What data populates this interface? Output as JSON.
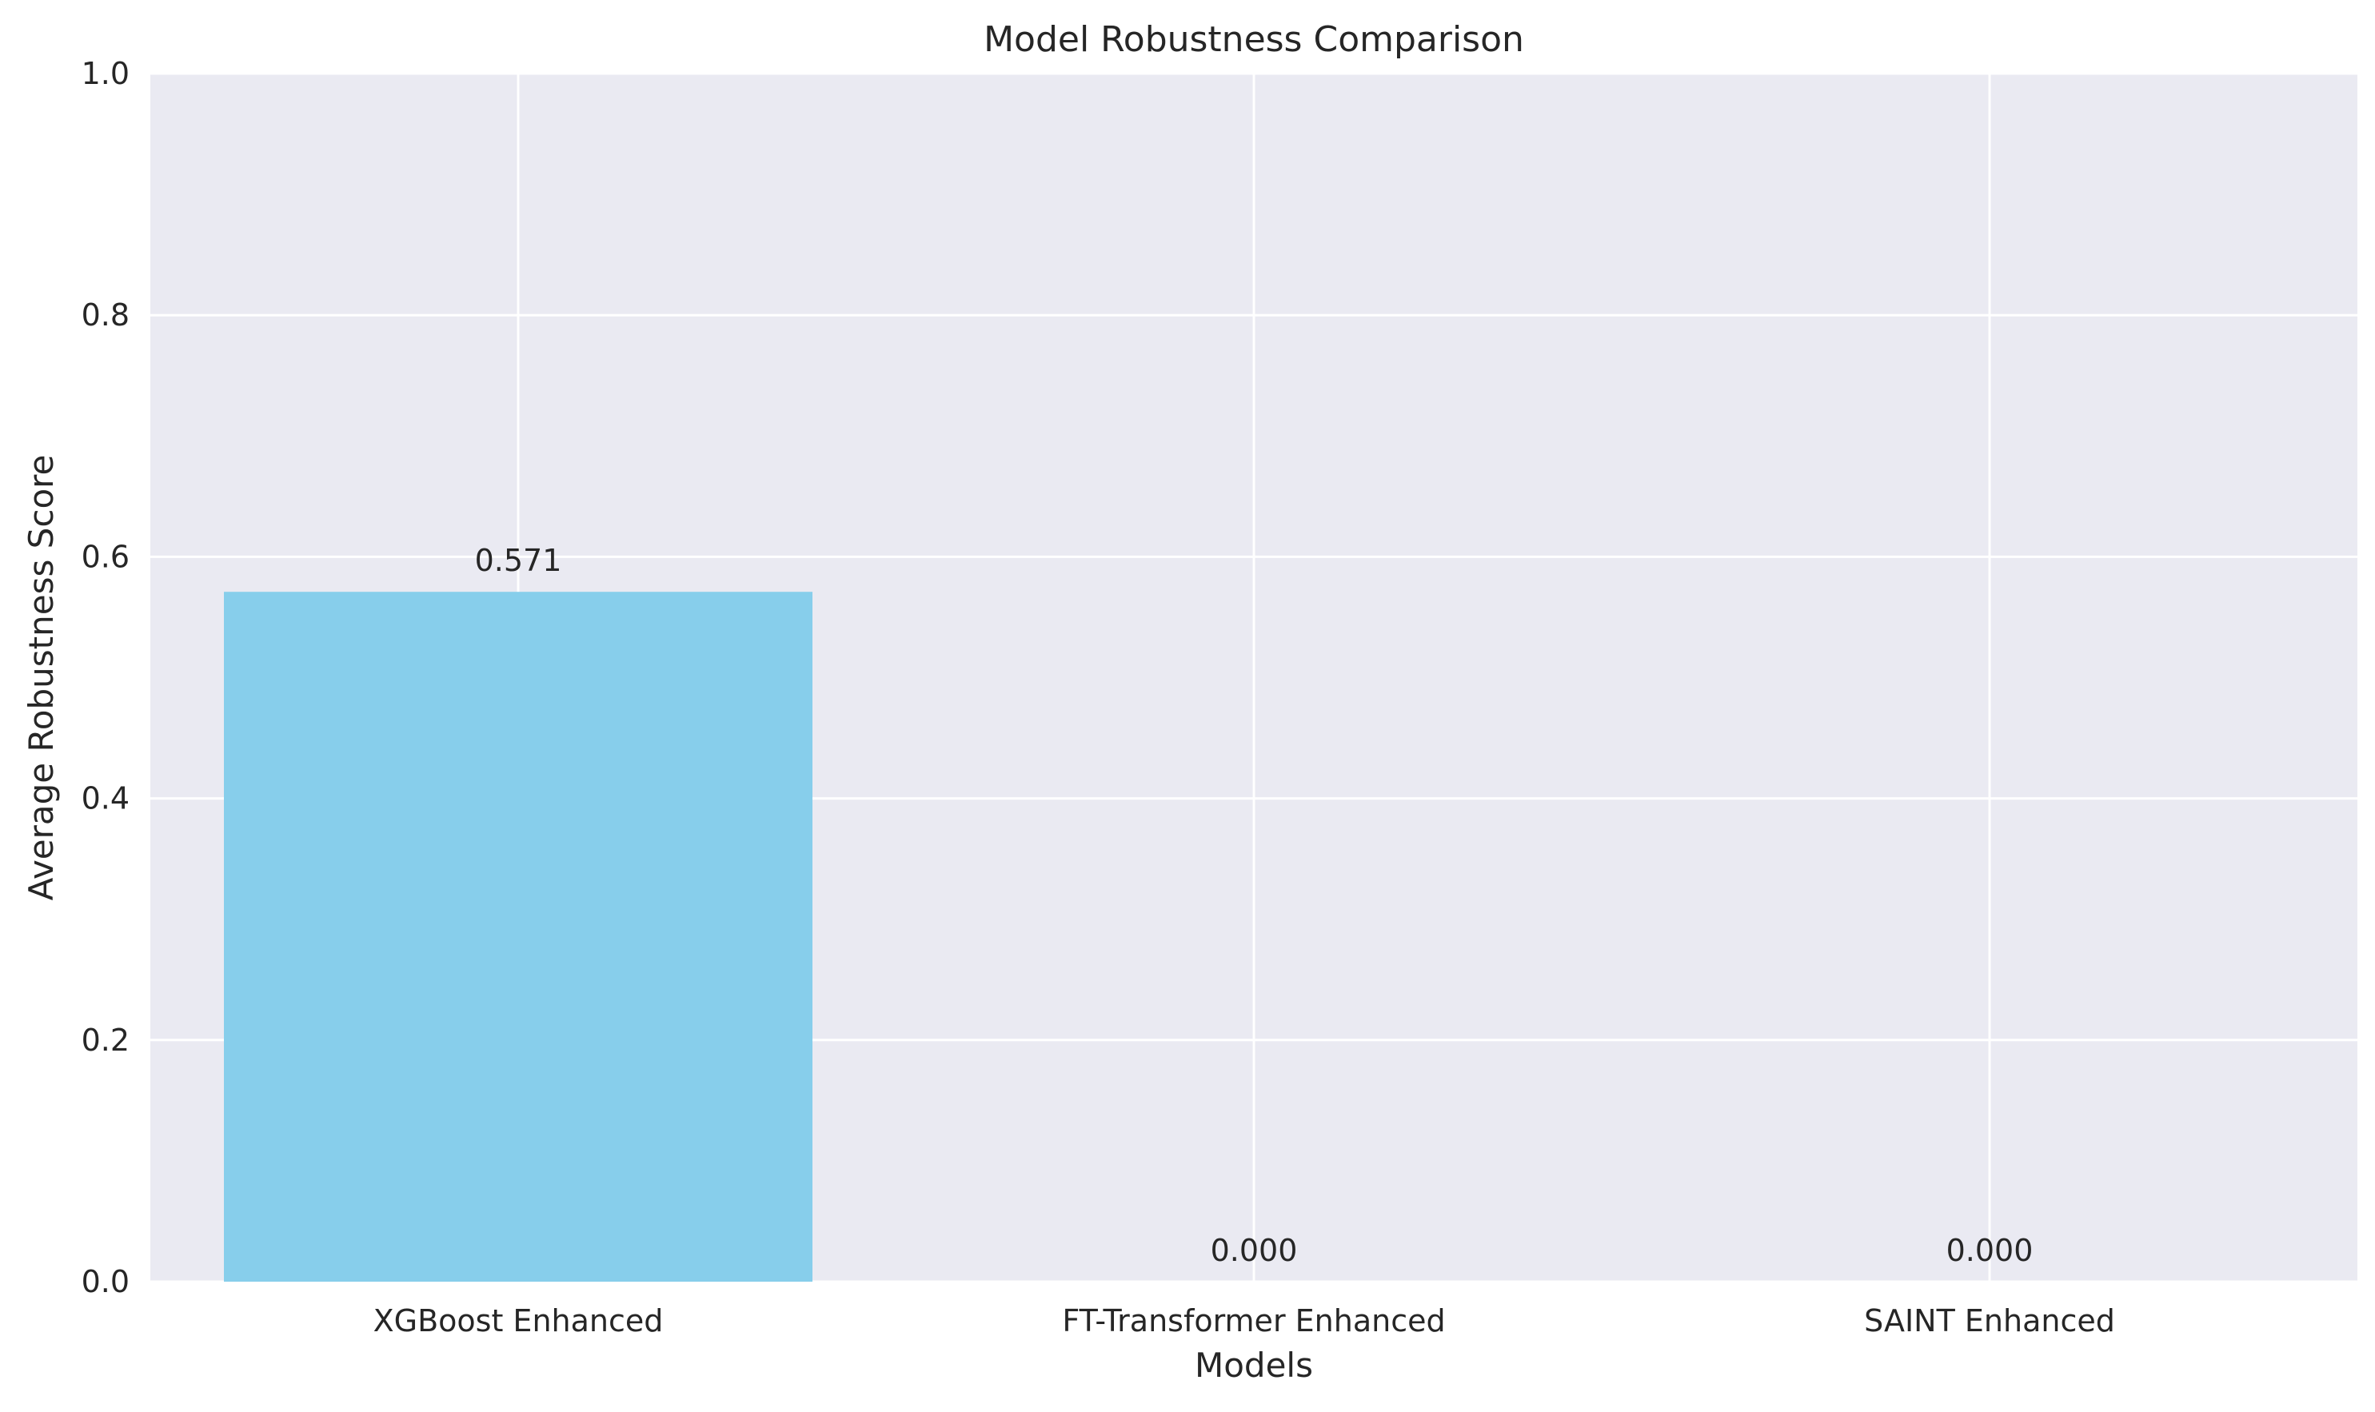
{
  "chart_data": {
    "type": "bar",
    "title": "Model Robustness Comparison",
    "xlabel": "Models",
    "ylabel": "Average Robustness Score",
    "categories": [
      "XGBoost Enhanced",
      "FT-Transformer Enhanced",
      "SAINT Enhanced"
    ],
    "values": [
      0.571,
      0.0,
      0.0
    ],
    "value_labels": [
      "0.571",
      "0.000",
      "0.000"
    ],
    "ylim": [
      0,
      1.0
    ],
    "yticks": [
      0.0,
      0.2,
      0.4,
      0.6,
      0.8,
      1.0
    ],
    "ytick_labels": [
      "0.0",
      "0.2",
      "0.4",
      "0.6",
      "0.8",
      "1.0"
    ],
    "grid": true,
    "legend": "none",
    "colors": {
      "bar": "#87CEEB",
      "plot_background": "#EAEAF2",
      "grid": "#FFFFFF",
      "text": "#262626"
    }
  }
}
